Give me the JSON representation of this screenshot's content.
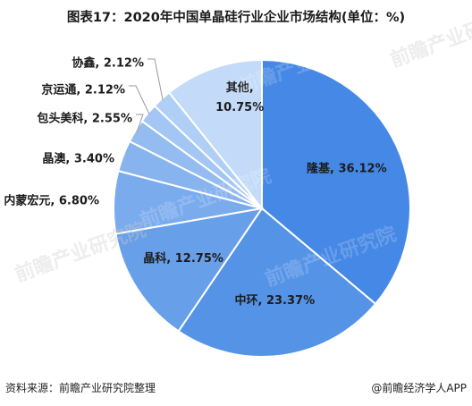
{
  "title": "图表17：2020年中国单晶硅行业企业市场结构(单位：%)",
  "footer": {
    "source": "资料来源：前瞻产业研究院整理",
    "publisher": "@前瞻经济学人APP"
  },
  "watermark": "前瞻产业研究院",
  "chart_data": {
    "type": "pie",
    "title": "图表17：2020年中国单晶硅行业企业市场结构(单位：%)",
    "unit": "%",
    "slices": [
      {
        "name": "隆基",
        "value": 36.12,
        "color": "#4688e5",
        "label": "隆基, 36.12%",
        "label_style": "inside"
      },
      {
        "name": "中环",
        "value": 23.37,
        "color": "#5593e7",
        "label": "中环, 23.37%",
        "label_style": "inside"
      },
      {
        "name": "晶科",
        "value": 12.75,
        "color": "#689fe9",
        "label": "晶科, 12.75%",
        "label_style": "inside"
      },
      {
        "name": "内蒙宏元",
        "value": 6.8,
        "color": "#7aabed",
        "label": "内蒙宏元, 6.80%",
        "label_style": "outside"
      },
      {
        "name": "晶澳",
        "value": 3.4,
        "color": "#87b3ef",
        "label": "晶澳, 3.40%",
        "label_style": "outside"
      },
      {
        "name": "包头美科",
        "value": 2.55,
        "color": "#95bcf1",
        "label": "包头美科, 2.55%",
        "label_style": "callout"
      },
      {
        "name": "京运通",
        "value": 2.12,
        "color": "#a3c6f4",
        "label": "京运通, 2.12%",
        "label_style": "callout"
      },
      {
        "name": "协鑫",
        "value": 2.12,
        "color": "#b0cff6",
        "label": "协鑫, 2.12%",
        "label_style": "callout"
      },
      {
        "name": "其他",
        "value": 10.75,
        "color": "#c3dbf8",
        "label": "其他,\n10.75%",
        "label_style": "inside"
      }
    ],
    "start_angle_deg": 0,
    "direction": "clockwise",
    "legend": "none"
  }
}
